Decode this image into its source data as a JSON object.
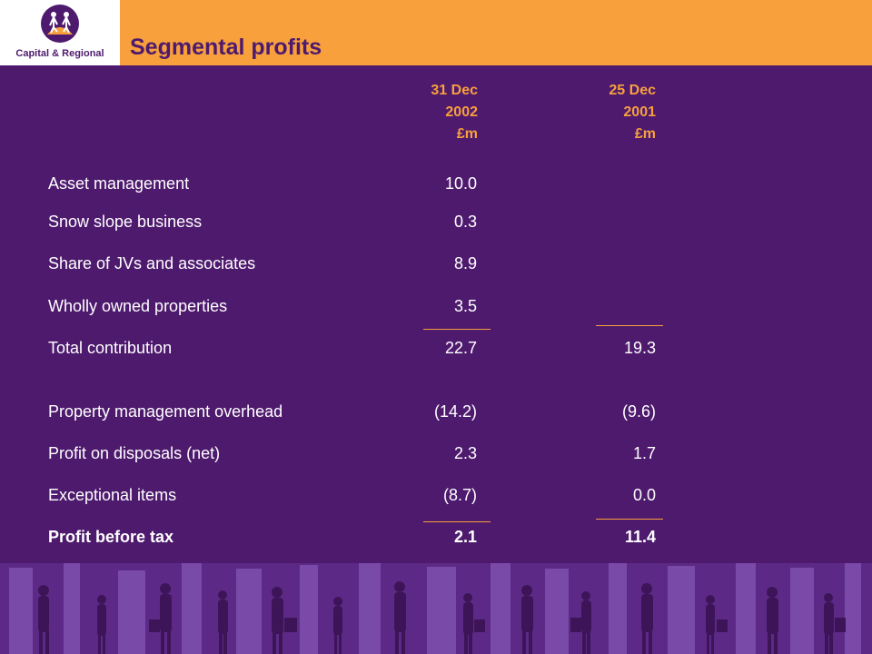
{
  "brand": {
    "name": "Capital & Regional"
  },
  "title": "Segmental profits",
  "columns": [
    {
      "line1": "31 Dec",
      "line2": "2002",
      "line3": "£m"
    },
    {
      "line1": "25 Dec",
      "line2": "2001",
      "line3": "£m"
    }
  ],
  "rows": [
    {
      "label": "Asset management",
      "a": "10.0",
      "b": ""
    },
    {
      "label": "Snow slope business",
      "a": "0.3",
      "b": ""
    },
    {
      "label": "Share of JVs and associates",
      "a": "8.9",
      "b": ""
    },
    {
      "label": "Wholly owned properties",
      "a": "3.5",
      "b": ""
    },
    {
      "label": "Total contribution",
      "a": "22.7",
      "b": "19.3"
    },
    {
      "label": "Property management overhead",
      "a": "(14.2)",
      "b": "(9.6)"
    },
    {
      "label": "Profit on disposals (net)",
      "a": "2.3",
      "b": "1.7"
    },
    {
      "label": "Exceptional items",
      "a": "(8.7)",
      "b": "0.0"
    },
    {
      "label": "Profit before tax",
      "a": "2.1",
      "b": "11.4"
    }
  ],
  "colors": {
    "purple": "#4e1a6e",
    "orange": "#f7a03c",
    "white": "#ffffff"
  }
}
